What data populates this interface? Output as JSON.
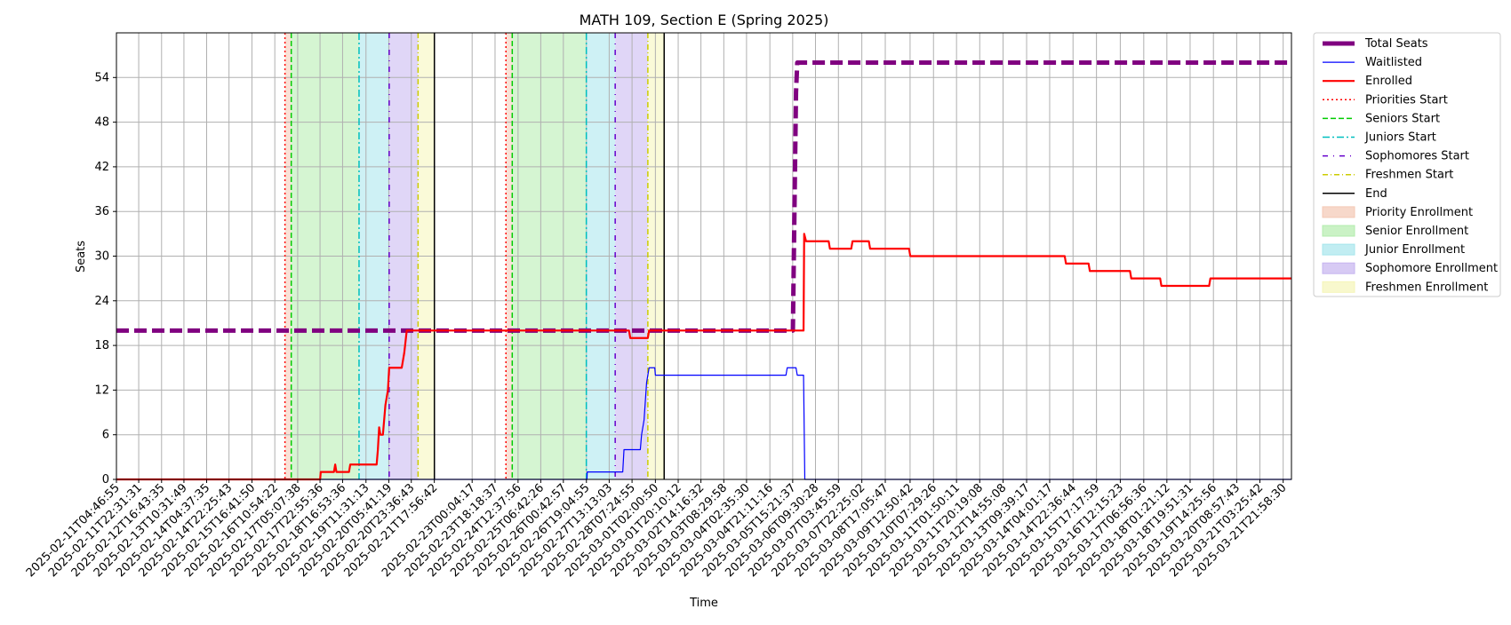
{
  "chart_data": {
    "type": "line",
    "title": "MATH 109, Section E (Spring 2025)",
    "xlabel": "Time",
    "ylabel": "Seats",
    "ylim": [
      0,
      60
    ],
    "yticks": [
      0,
      6,
      12,
      18,
      24,
      30,
      36,
      42,
      48,
      54
    ],
    "xlim": [
      "2025-02-11T04:46:55",
      "2025-03-22T04:34:40"
    ],
    "xtick_interval_label": "every 18h 18m 44s",
    "xtick_labels": [
      "2025-02-11T04:46:55",
      "2025-02-11T22:31:31",
      "2025-02-12T16:43:35",
      "2025-02-13T10:31:49",
      "2025-02-14T04:37:35",
      "2025-02-14T22:25:43",
      "2025-02-15T16:41:50",
      "2025-02-16T10:54:22",
      "2025-02-17T05:07:38",
      "2025-02-17T22:55:36",
      "2025-02-18T16:53:36",
      "2025-02-19T11:31:13",
      "2025-02-20T05:41:19",
      "2025-02-20T23:36:43",
      "2025-02-21T17:56:42",
      "2025-02-23T00:04:17",
      "2025-02-23T18:18:37",
      "2025-02-24T12:37:56",
      "2025-02-25T06:42:26",
      "2025-02-26T00:42:57",
      "2025-02-26T19:04:55",
      "2025-02-27T13:13:03",
      "2025-02-28T07:24:55",
      "2025-03-01T02:00:50",
      "2025-03-01T20:10:12",
      "2025-03-02T14:16:32",
      "2025-03-03T08:29:58",
      "2025-03-04T02:35:30",
      "2025-03-04T21:11:16",
      "2025-03-05T15:21:37",
      "2025-03-06T09:30:28",
      "2025-03-07T03:45:59",
      "2025-03-07T22:25:02",
      "2025-03-08T17:05:47",
      "2025-03-09T12:50:42",
      "2025-03-10T07:29:26",
      "2025-03-11T01:50:11",
      "2025-03-11T20:19:08",
      "2025-03-12T14:55:08",
      "2025-03-13T09:39:17",
      "2025-03-14T04:01:17",
      "2025-03-14T22:36:44",
      "2025-03-15T17:17:59",
      "2025-03-16T12:15:23",
      "2025-03-17T06:56:36",
      "2025-03-18T01:21:12",
      "2025-03-18T19:51:31",
      "2025-03-19T14:25:56",
      "2025-03-20T08:57:43",
      "2025-03-21T03:25:42",
      "2025-03-21T21:58:30"
    ],
    "grid": true,
    "legend_position": "outside-right",
    "colors": {
      "total": "#800080",
      "waitlisted": "#0000ff",
      "enrolled": "#ff0000",
      "priorities": "#ff0000",
      "seniors": "#00cc00",
      "juniors": "#00bfbf",
      "sophomores": "#6600cc",
      "freshmen": "#cccc00",
      "end": "#000000",
      "priority_fill": "#f4c8b4",
      "senior_fill": "#b3ecad",
      "junior_fill": "#a6e6ec",
      "sophomore_fill": "#c6b4f0",
      "freshmen_fill": "#f5f5b8"
    },
    "legend": [
      "Total Seats",
      "Waitlisted",
      "Enrolled",
      "Priorities Start",
      "Seniors Start",
      "Juniors Start",
      "Sophomores Start",
      "Freshmen Start",
      "End",
      "Priority Enrollment",
      "Senior Enrollment",
      "Junior Enrollment",
      "Sophomore Enrollment",
      "Freshmen Enrollment"
    ],
    "series": [
      {
        "name": "Total Seats",
        "points": [
          [
            "2025-02-11T04:46:55",
            20
          ],
          [
            "2025-03-05T15:30:00",
            20
          ],
          [
            "2025-03-05T18:00:00",
            52
          ],
          [
            "2025-03-05T19:00:00",
            56
          ],
          [
            "2025-03-22T04:34:40",
            56
          ]
        ]
      },
      {
        "name": "Waitlisted",
        "points": [
          [
            "2025-02-11T04:46:55",
            0
          ],
          [
            "2025-02-26T19:30:00",
            0
          ],
          [
            "2025-02-26T19:45:00",
            1
          ],
          [
            "2025-02-28T00:00:00",
            1
          ],
          [
            "2025-02-28T01:00:00",
            4
          ],
          [
            "2025-02-28T14:00:00",
            4
          ],
          [
            "2025-02-28T15:00:00",
            6
          ],
          [
            "2025-02-28T17:00:00",
            8
          ],
          [
            "2025-02-28T19:00:00",
            13
          ],
          [
            "2025-02-28T21:00:00",
            15
          ],
          [
            "2025-03-01T01:30:00",
            15
          ],
          [
            "2025-03-01T02:00:00",
            14
          ],
          [
            "2025-03-05T10:00:00",
            14
          ],
          [
            "2025-03-05T11:00:00",
            15
          ],
          [
            "2025-03-05T18:00:00",
            15
          ],
          [
            "2025-03-05T19:00:00",
            14
          ],
          [
            "2025-03-06T00:00:00",
            14
          ],
          [
            "2025-03-06T01:00:00",
            0
          ],
          [
            "2025-03-22T04:34:40",
            0
          ]
        ]
      },
      {
        "name": "Enrolled",
        "points": [
          [
            "2025-02-11T04:46:55",
            0
          ],
          [
            "2025-02-17T23:00:00",
            0
          ],
          [
            "2025-02-17T23:30:00",
            1
          ],
          [
            "2025-02-18T10:00:00",
            1
          ],
          [
            "2025-02-18T11:00:00",
            2
          ],
          [
            "2025-02-18T12:00:00",
            1
          ],
          [
            "2025-02-18T22:00:00",
            1
          ],
          [
            "2025-02-18T23:00:00",
            2
          ],
          [
            "2025-02-19T20:00:00",
            2
          ],
          [
            "2025-02-19T21:00:00",
            4
          ],
          [
            "2025-02-19T22:00:00",
            7
          ],
          [
            "2025-02-19T23:00:00",
            6
          ],
          [
            "2025-02-20T01:00:00",
            6
          ],
          [
            "2025-02-20T03:00:00",
            10
          ],
          [
            "2025-02-20T05:00:00",
            12
          ],
          [
            "2025-02-20T06:00:00",
            15
          ],
          [
            "2025-02-20T16:00:00",
            15
          ],
          [
            "2025-02-20T18:00:00",
            17
          ],
          [
            "2025-02-20T20:00:00",
            20
          ],
          [
            "2025-02-28T05:00:00",
            20
          ],
          [
            "2025-02-28T06:00:00",
            19
          ],
          [
            "2025-02-28T20:00:00",
            19
          ],
          [
            "2025-02-28T21:00:00",
            20
          ],
          [
            "2025-03-06T00:00:00",
            20
          ],
          [
            "2025-03-06T00:30:00",
            33
          ],
          [
            "2025-03-06T02:00:00",
            32
          ],
          [
            "2025-03-06T20:00:00",
            32
          ],
          [
            "2025-03-06T21:00:00",
            31
          ],
          [
            "2025-03-07T14:00:00",
            31
          ],
          [
            "2025-03-07T15:00:00",
            32
          ],
          [
            "2025-03-08T04:00:00",
            32
          ],
          [
            "2025-03-08T05:00:00",
            31
          ],
          [
            "2025-03-09T12:00:00",
            31
          ],
          [
            "2025-03-09T13:00:00",
            30
          ],
          [
            "2025-03-14T16:00:00",
            30
          ],
          [
            "2025-03-14T17:00:00",
            29
          ],
          [
            "2025-03-15T11:00:00",
            29
          ],
          [
            "2025-03-15T12:00:00",
            28
          ],
          [
            "2025-03-16T20:00:00",
            28
          ],
          [
            "2025-03-16T21:00:00",
            27
          ],
          [
            "2025-03-17T20:00:00",
            27
          ],
          [
            "2025-03-17T21:00:00",
            26
          ],
          [
            "2025-03-19T11:00:00",
            26
          ],
          [
            "2025-03-19T12:00:00",
            27
          ],
          [
            "2025-03-22T04:34:40",
            27
          ]
        ]
      }
    ],
    "markers": [
      {
        "name": "Priorities Start",
        "x": [
          "2025-02-16T19:00:00",
          "2025-02-24T03:00:00"
        ]
      },
      {
        "name": "Seniors Start",
        "x": [
          "2025-02-17T00:00:00",
          "2025-02-24T08:00:00"
        ]
      },
      {
        "name": "Juniors Start",
        "x": [
          "2025-02-19T06:00:00",
          "2025-02-26T19:00:00"
        ]
      },
      {
        "name": "Sophomores Start",
        "x": [
          "2025-02-20T06:00:00",
          "2025-02-27T18:00:00"
        ]
      },
      {
        "name": "Freshmen Start",
        "x": [
          "2025-02-21T05:00:00",
          "2025-02-28T20:00:00"
        ]
      },
      {
        "name": "End",
        "x": [
          "2025-02-21T18:00:00",
          "2025-03-01T09:00:00"
        ]
      }
    ],
    "spans": [
      {
        "name": "Priority Enrollment",
        "ranges": [
          [
            "2025-02-16T19:00:00",
            "2025-02-17T00:00:00"
          ],
          [
            "2025-02-24T03:00:00",
            "2025-02-24T08:00:00"
          ]
        ]
      },
      {
        "name": "Senior Enrollment",
        "ranges": [
          [
            "2025-02-17T00:00:00",
            "2025-02-19T06:00:00"
          ],
          [
            "2025-02-24T08:00:00",
            "2025-02-26T19:00:00"
          ]
        ]
      },
      {
        "name": "Junior Enrollment",
        "ranges": [
          [
            "2025-02-19T06:00:00",
            "2025-02-20T06:00:00"
          ],
          [
            "2025-02-26T19:00:00",
            "2025-02-27T18:00:00"
          ]
        ]
      },
      {
        "name": "Sophomore Enrollment",
        "ranges": [
          [
            "2025-02-20T06:00:00",
            "2025-02-21T05:00:00"
          ],
          [
            "2025-02-27T18:00:00",
            "2025-02-28T20:00:00"
          ]
        ]
      },
      {
        "name": "Freshmen Enrollment",
        "ranges": [
          [
            "2025-02-21T05:00:00",
            "2025-02-21T18:00:00"
          ],
          [
            "2025-02-28T20:00:00",
            "2025-03-01T09:00:00"
          ]
        ]
      }
    ]
  }
}
